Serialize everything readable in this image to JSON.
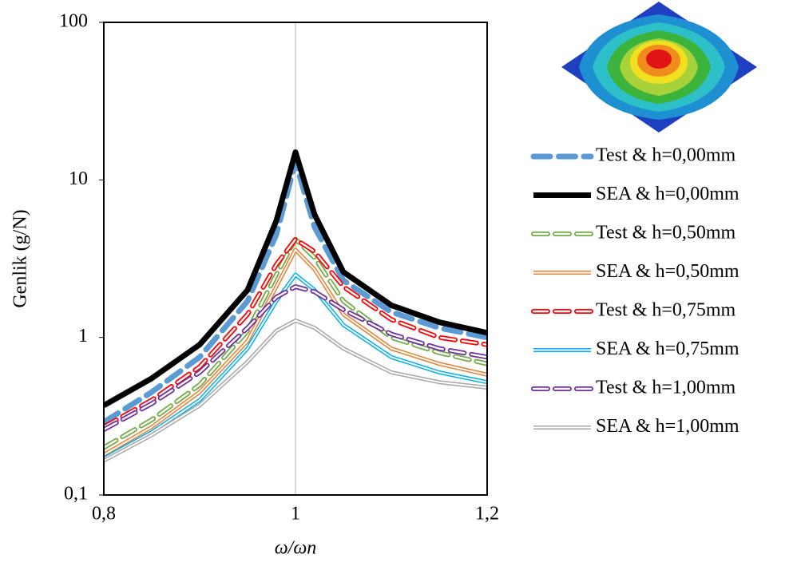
{
  "chart_data": {
    "type": "line",
    "xlabel": "ω/ωn",
    "ylabel": "Genlik (g/N)",
    "x": [
      0.8,
      0.85,
      0.9,
      0.95,
      0.98,
      1.0,
      1.02,
      1.05,
      1.1,
      1.15,
      1.2
    ],
    "xlim": [
      0.8,
      1.2
    ],
    "xticks": [
      {
        "value": 0.8,
        "label": "0,8"
      },
      1,
      {
        "value": 1.2,
        "label": "1,2"
      }
    ],
    "ylim": [
      0.1,
      100
    ],
    "log_y": true,
    "yticks": [
      {
        "value": 0.1,
        "label": "0,1"
      },
      1,
      10,
      100
    ],
    "x_grid": true,
    "legend": "right",
    "series": [
      {
        "name": "Test & h=0,00mm",
        "color": "#5b9bd5",
        "dashed": true,
        "double": false,
        "width": 7,
        "values": [
          0.29,
          0.45,
          0.75,
          1.7,
          4.5,
          13,
          5,
          2.3,
          1.45,
          1.15,
          1.0
        ]
      },
      {
        "name": "SEA & h=0,00mm",
        "color": "#000000",
        "dashed": false,
        "double": false,
        "width": 7,
        "values": [
          0.37,
          0.55,
          0.9,
          2.0,
          5.5,
          15,
          6,
          2.6,
          1.6,
          1.25,
          1.07
        ]
      },
      {
        "name": "Test & h=0,50mm",
        "color": "#70ad47",
        "dashed": true,
        "double": true,
        "width": 6,
        "values": [
          0.2,
          0.3,
          0.5,
          1.1,
          2.5,
          4.2,
          3.2,
          1.7,
          1.0,
          0.8,
          0.68
        ]
      },
      {
        "name": "SEA & h=0,50mm",
        "color": "#ed7d31",
        "dashed": false,
        "double": true,
        "width": 5,
        "values": [
          0.18,
          0.27,
          0.45,
          0.95,
          2.1,
          3.6,
          2.7,
          1.4,
          0.85,
          0.68,
          0.58
        ]
      },
      {
        "name": "Test & h=0,75mm",
        "color": "#ff0000",
        "dashed": true,
        "double": true,
        "width": 6,
        "values": [
          0.27,
          0.4,
          0.65,
          1.4,
          2.9,
          4.2,
          3.5,
          2.1,
          1.3,
          1.0,
          0.9
        ]
      },
      {
        "name": "SEA & h=0,75mm",
        "color": "#00b0f0",
        "dashed": false,
        "double": true,
        "width": 5,
        "values": [
          0.17,
          0.25,
          0.4,
          0.85,
          1.7,
          2.5,
          2.0,
          1.2,
          0.75,
          0.6,
          0.52
        ]
      },
      {
        "name": "Test & h=1,00mm",
        "color": "#7030a0",
        "dashed": true,
        "double": true,
        "width": 6,
        "values": [
          0.26,
          0.38,
          0.6,
          1.15,
          1.8,
          2.1,
          1.95,
          1.5,
          1.05,
          0.85,
          0.75
        ]
      },
      {
        "name": "SEA & h=1,00mm",
        "color": "#a6a6a6",
        "dashed": false,
        "double": true,
        "width": 5,
        "values": [
          0.165,
          0.24,
          0.37,
          0.7,
          1.1,
          1.28,
          1.15,
          0.85,
          0.6,
          0.52,
          0.48
        ]
      }
    ]
  }
}
